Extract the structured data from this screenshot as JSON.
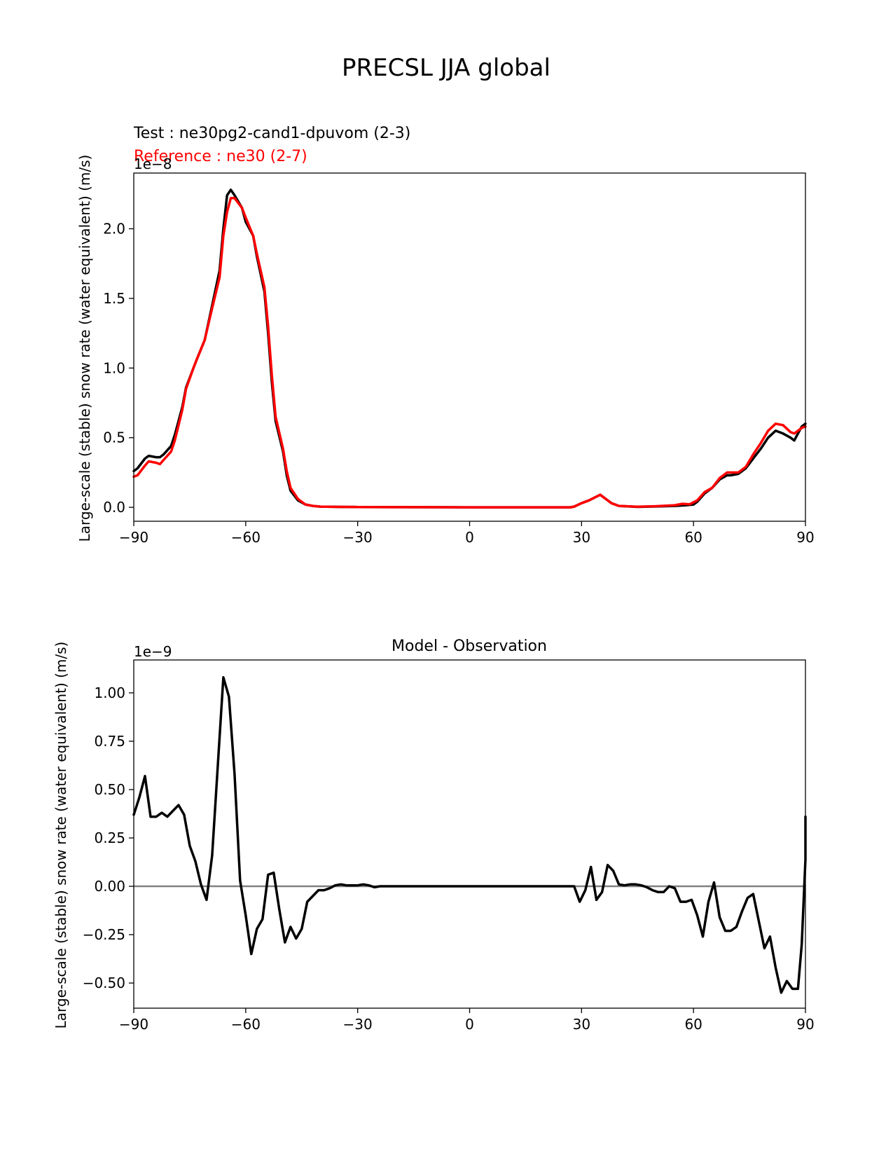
{
  "figure": {
    "title": "PRECSL JJA global"
  },
  "chart_data": [
    {
      "type": "line",
      "title": "",
      "legend_labels": [
        "Test : ne30pg2-cand1-dpuvom (2-3)",
        "Reference : ne30 (2-7)"
      ],
      "xlabel": "",
      "ylabel": "Large-scale (stable) snow rate (water equivalent) (m/s)",
      "y_offset_text": "1e−8",
      "xlim": [
        -90,
        90
      ],
      "ylim": [
        -0.1,
        2.4
      ],
      "y_scale": 1e-08,
      "xticks": [
        -90,
        -60,
        -30,
        0,
        30,
        60,
        90
      ],
      "xtick_labels": [
        "−90",
        "−60",
        "−30",
        "0",
        "30",
        "60",
        "90"
      ],
      "yticks": [
        0.0,
        0.5,
        1.0,
        1.5,
        2.0
      ],
      "ytick_labels": [
        "0.0",
        "0.5",
        "1.0",
        "1.5",
        "2.0"
      ],
      "grid": false,
      "series": [
        {
          "name": "Test : ne30pg2-cand1-dpuvom (2-3)",
          "color": "#000000",
          "points": [
            [
              -90,
              0.26
            ],
            [
              -89,
              0.28
            ],
            [
              -87,
              0.35
            ],
            [
              -86,
              0.37
            ],
            [
              -84,
              0.36
            ],
            [
              -83,
              0.36
            ],
            [
              -82,
              0.38
            ],
            [
              -80,
              0.44
            ],
            [
              -79,
              0.52
            ],
            [
              -77,
              0.72
            ],
            [
              -76,
              0.86
            ],
            [
              -74,
              1.0
            ],
            [
              -73,
              1.07
            ],
            [
              -71,
              1.2
            ],
            [
              -69,
              1.45
            ],
            [
              -67,
              1.7
            ],
            [
              -66,
              2.0
            ],
            [
              -65,
              2.24
            ],
            [
              -64,
              2.28
            ],
            [
              -63,
              2.24
            ],
            [
              -61,
              2.15
            ],
            [
              -60,
              2.05
            ],
            [
              -58,
              1.95
            ],
            [
              -57,
              1.8
            ],
            [
              -55,
              1.55
            ],
            [
              -54,
              1.25
            ],
            [
              -53,
              0.9
            ],
            [
              -52,
              0.62
            ],
            [
              -50,
              0.4
            ],
            [
              -49,
              0.23
            ],
            [
              -48,
              0.12
            ],
            [
              -46,
              0.05
            ],
            [
              -44,
              0.02
            ],
            [
              -42,
              0.01
            ],
            [
              -40,
              0.005
            ],
            [
              -35,
              0.003
            ],
            [
              -30,
              0.002
            ],
            [
              -20,
              0.001
            ],
            [
              0,
              0.0
            ],
            [
              20,
              0.0
            ],
            [
              27,
              0.0
            ],
            [
              28,
              0.005
            ],
            [
              30,
              0.03
            ],
            [
              32,
              0.05
            ],
            [
              35,
              0.09
            ],
            [
              36,
              0.07
            ],
            [
              38,
              0.03
            ],
            [
              40,
              0.01
            ],
            [
              45,
              0.003
            ],
            [
              50,
              0.006
            ],
            [
              55,
              0.01
            ],
            [
              58,
              0.015
            ],
            [
              60,
              0.02
            ],
            [
              61,
              0.04
            ],
            [
              63,
              0.1
            ],
            [
              65,
              0.14
            ],
            [
              67,
              0.2
            ],
            [
              69,
              0.23
            ],
            [
              70,
              0.23
            ],
            [
              72,
              0.24
            ],
            [
              74,
              0.28
            ],
            [
              76,
              0.35
            ],
            [
              78,
              0.42
            ],
            [
              80,
              0.5
            ],
            [
              82,
              0.55
            ],
            [
              84,
              0.53
            ],
            [
              86,
              0.5
            ],
            [
              87,
              0.48
            ],
            [
              88,
              0.53
            ],
            [
              89,
              0.58
            ],
            [
              90,
              0.6
            ]
          ]
        },
        {
          "name": "Reference : ne30 (2-7)",
          "color": "#ff0000",
          "points": [
            [
              -90,
              0.22
            ],
            [
              -89,
              0.23
            ],
            [
              -87,
              0.3
            ],
            [
              -86,
              0.33
            ],
            [
              -84,
              0.32
            ],
            [
              -83,
              0.31
            ],
            [
              -82,
              0.34
            ],
            [
              -80,
              0.4
            ],
            [
              -79,
              0.48
            ],
            [
              -77,
              0.7
            ],
            [
              -76,
              0.85
            ],
            [
              -74,
              1.0
            ],
            [
              -73,
              1.07
            ],
            [
              -71,
              1.2
            ],
            [
              -69,
              1.43
            ],
            [
              -67,
              1.65
            ],
            [
              -66,
              1.95
            ],
            [
              -65,
              2.12
            ],
            [
              -64,
              2.22
            ],
            [
              -63,
              2.22
            ],
            [
              -61,
              2.15
            ],
            [
              -60,
              2.08
            ],
            [
              -58,
              1.95
            ],
            [
              -57,
              1.82
            ],
            [
              -55,
              1.58
            ],
            [
              -54,
              1.3
            ],
            [
              -53,
              0.95
            ],
            [
              -52,
              0.65
            ],
            [
              -50,
              0.42
            ],
            [
              -49,
              0.26
            ],
            [
              -48,
              0.14
            ],
            [
              -46,
              0.06
            ],
            [
              -44,
              0.02
            ],
            [
              -42,
              0.01
            ],
            [
              -40,
              0.005
            ],
            [
              -35,
              0.003
            ],
            [
              -30,
              0.002
            ],
            [
              -20,
              0.001
            ],
            [
              0,
              0.0
            ],
            [
              20,
              0.0
            ],
            [
              27,
              0.0
            ],
            [
              28,
              0.005
            ],
            [
              30,
              0.03
            ],
            [
              32,
              0.05
            ],
            [
              35,
              0.09
            ],
            [
              36,
              0.07
            ],
            [
              38,
              0.03
            ],
            [
              40,
              0.01
            ],
            [
              45,
              0.004
            ],
            [
              50,
              0.008
            ],
            [
              55,
              0.015
            ],
            [
              57,
              0.025
            ],
            [
              59,
              0.022
            ],
            [
              61,
              0.05
            ],
            [
              63,
              0.11
            ],
            [
              65,
              0.14
            ],
            [
              67,
              0.21
            ],
            [
              69,
              0.25
            ],
            [
              71,
              0.25
            ],
            [
              72,
              0.25
            ],
            [
              74,
              0.29
            ],
            [
              76,
              0.38
            ],
            [
              78,
              0.46
            ],
            [
              80,
              0.55
            ],
            [
              82,
              0.6
            ],
            [
              84,
              0.59
            ],
            [
              86,
              0.54
            ],
            [
              87,
              0.53
            ],
            [
              88,
              0.55
            ],
            [
              89,
              0.57
            ],
            [
              90,
              0.58
            ]
          ]
        }
      ]
    },
    {
      "type": "line",
      "title": "Model - Observation",
      "xlabel": "",
      "ylabel": "Large-scale (stable) snow rate (water equivalent) (m/s)",
      "y_offset_text": "1e−9",
      "xlim": [
        -90,
        90
      ],
      "ylim": [
        -0.63,
        1.17
      ],
      "y_scale": 1e-09,
      "xticks": [
        -90,
        -60,
        -30,
        0,
        30,
        60,
        90
      ],
      "xtick_labels": [
        "−90",
        "−60",
        "−30",
        "0",
        "30",
        "60",
        "90"
      ],
      "yticks": [
        -0.5,
        -0.25,
        0.0,
        0.25,
        0.5,
        0.75,
        1.0
      ],
      "ytick_labels": [
        "−0.50",
        "−0.25",
        "0.00",
        "0.25",
        "0.50",
        "0.75",
        "1.00"
      ],
      "grid": false,
      "zero_line_color": "#808080",
      "series": [
        {
          "name": "",
          "color": "#000000",
          "points": [
            [
              -90,
              0.37
            ],
            [
              -88.5,
              0.46
            ],
            [
              -87,
              0.57
            ],
            [
              -85.5,
              0.36
            ],
            [
              -84,
              0.36
            ],
            [
              -82.5,
              0.38
            ],
            [
              -81,
              0.36
            ],
            [
              -79.5,
              0.39
            ],
            [
              -78,
              0.42
            ],
            [
              -76.5,
              0.37
            ],
            [
              -75,
              0.21
            ],
            [
              -73.5,
              0.13
            ],
            [
              -72,
              0.01
            ],
            [
              -70.5,
              -0.07
            ],
            [
              -69,
              0.16
            ],
            [
              -67.5,
              0.62
            ],
            [
              -66,
              1.08
            ],
            [
              -64.5,
              0.98
            ],
            [
              -63,
              0.58
            ],
            [
              -61.5,
              0.03
            ],
            [
              -60,
              -0.15
            ],
            [
              -58.5,
              -0.35
            ],
            [
              -57,
              -0.22
            ],
            [
              -55.5,
              -0.17
            ],
            [
              -54,
              0.06
            ],
            [
              -52.5,
              0.07
            ],
            [
              -51,
              -0.12
            ],
            [
              -49.5,
              -0.29
            ],
            [
              -48,
              -0.21
            ],
            [
              -46.5,
              -0.27
            ],
            [
              -45,
              -0.22
            ],
            [
              -43.5,
              -0.08
            ],
            [
              -42,
              -0.05
            ],
            [
              -40.5,
              -0.02
            ],
            [
              -39,
              -0.02
            ],
            [
              -37.5,
              -0.01
            ],
            [
              -36,
              0.005
            ],
            [
              -34.5,
              0.01
            ],
            [
              -33,
              0.005
            ],
            [
              -31.5,
              0.005
            ],
            [
              -30,
              0.005
            ],
            [
              -28.5,
              0.01
            ],
            [
              -27,
              0.005
            ],
            [
              -25.5,
              -0.005
            ],
            [
              -24,
              0.0
            ],
            [
              -21,
              0.0
            ],
            [
              -18,
              0.0
            ],
            [
              -15,
              0.0
            ],
            [
              -10,
              0.0
            ],
            [
              0,
              0.0
            ],
            [
              10,
              0.0
            ],
            [
              20,
              0.0
            ],
            [
              28,
              0.0
            ],
            [
              29.5,
              -0.08
            ],
            [
              31,
              -0.02
            ],
            [
              32.5,
              0.1
            ],
            [
              34,
              -0.07
            ],
            [
              35.5,
              -0.03
            ],
            [
              37,
              0.11
            ],
            [
              38.5,
              0.08
            ],
            [
              40,
              0.01
            ],
            [
              41.5,
              0.005
            ],
            [
              43,
              0.01
            ],
            [
              44.5,
              0.01
            ],
            [
              46,
              0.005
            ],
            [
              47.5,
              -0.005
            ],
            [
              49,
              -0.02
            ],
            [
              50.5,
              -0.03
            ],
            [
              52,
              -0.03
            ],
            [
              53.5,
              0.0
            ],
            [
              55,
              -0.01
            ],
            [
              56.5,
              -0.08
            ],
            [
              58,
              -0.08
            ],
            [
              59.5,
              -0.07
            ],
            [
              61,
              -0.15
            ],
            [
              62.5,
              -0.26
            ],
            [
              64,
              -0.08
            ],
            [
              65.5,
              0.02
            ],
            [
              67,
              -0.16
            ],
            [
              68.5,
              -0.23
            ],
            [
              70,
              -0.23
            ],
            [
              71.5,
              -0.21
            ],
            [
              73,
              -0.13
            ],
            [
              74.5,
              -0.06
            ],
            [
              76,
              -0.04
            ],
            [
              77.5,
              -0.18
            ],
            [
              79,
              -0.32
            ],
            [
              80.5,
              -0.26
            ],
            [
              82,
              -0.42
            ],
            [
              83.5,
              -0.55
            ],
            [
              85,
              -0.49
            ],
            [
              86.5,
              -0.53
            ],
            [
              88,
              -0.53
            ],
            [
              89,
              -0.3
            ],
            [
              90,
              0.14
            ],
            [
              90,
              0.36
            ]
          ]
        }
      ]
    }
  ]
}
